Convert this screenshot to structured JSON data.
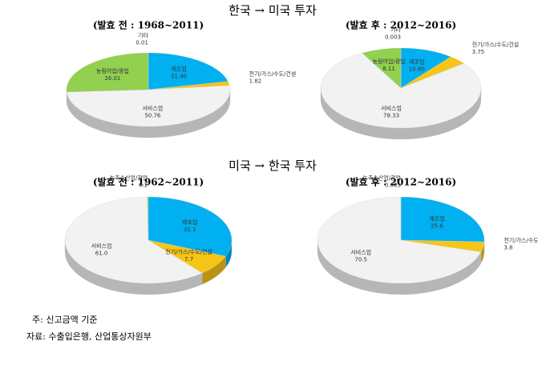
{
  "headings": [
    "한국 → 미국 투자",
    "미국 → 한국 투자"
  ],
  "chart_data": [
    {
      "type": "pie",
      "title": "(발효 전 : 1968~2011)",
      "categories": [
        "제조업",
        "전기/가스/수도/건설",
        "서비스업",
        "농림어업/광업",
        "기타"
      ],
      "values": [
        21.4,
        1.82,
        50.76,
        26.01,
        0.01
      ],
      "value_labels": [
        "21.40",
        "1.82",
        "50.76",
        "26.01",
        "0.01"
      ],
      "colors": [
        "#00b0f0",
        "#f5c518",
        "#f2f2f2",
        "#92d050",
        "#404040"
      ]
    },
    {
      "type": "pie",
      "title": "(발효 후 : 2012~2016)",
      "categories": [
        "제조업",
        "전기/가스/수도/건설",
        "서비스업",
        "농림어업/광업",
        "기타"
      ],
      "values": [
        10.8,
        3.75,
        78.33,
        8.11,
        0.003
      ],
      "value_labels": [
        "10.80",
        "3.75",
        "78.33",
        "8.11",
        "0.003"
      ],
      "colors": [
        "#00b0f0",
        "#f5c518",
        "#f2f2f2",
        "#92d050",
        "#404040"
      ]
    },
    {
      "type": "pie",
      "title": "(발효 전 : 1962~2011)",
      "categories": [
        "제조업",
        "전기/가스/수도/건설",
        "서비스업",
        "농축수산업/광업"
      ],
      "values": [
        31.1,
        7.7,
        61.0,
        0.2
      ],
      "value_labels": [
        "31.1",
        "7.7",
        "61.0",
        "0.2"
      ],
      "colors": [
        "#00b0f0",
        "#f5c518",
        "#f2f2f2",
        "#92d050"
      ]
    },
    {
      "type": "pie",
      "title": "(발효 후 : 2012~2016)",
      "categories": [
        "제조업",
        "전기/가스/수도/건설",
        "서비스업",
        "농축수산업/광업"
      ],
      "values": [
        25.6,
        3.8,
        70.5,
        0.003
      ],
      "value_labels": [
        "25.6",
        "3.8",
        "70.5",
        "0.003"
      ],
      "colors": [
        "#00b0f0",
        "#f5c518",
        "#f2f2f2",
        "#92d050"
      ]
    }
  ],
  "notes": [
    "주: 신고금액 기준",
    "자료: 수출입은행, 산업통상자원부"
  ]
}
